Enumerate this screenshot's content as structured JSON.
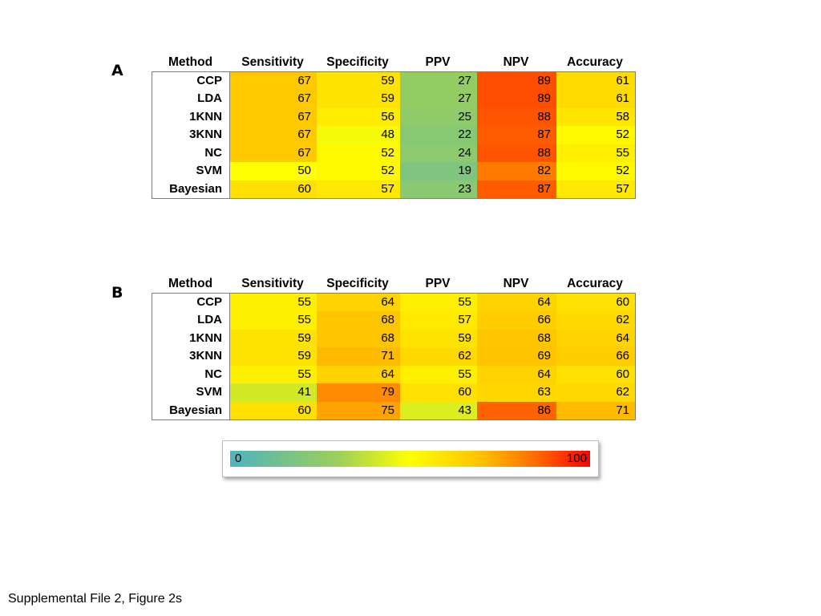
{
  "chart_data": [
    {
      "type": "heatmap",
      "panel": "A",
      "columns": [
        "Method",
        "Sensitivity",
        "Specificity",
        "PPV",
        "NPV",
        "Accuracy"
      ],
      "rows": [
        {
          "method": "CCP",
          "values": [
            67,
            59,
            27,
            89,
            61
          ]
        },
        {
          "method": "LDA",
          "values": [
            67,
            59,
            27,
            89,
            61
          ]
        },
        {
          "method": "1KNN",
          "values": [
            67,
            56,
            25,
            88,
            58
          ]
        },
        {
          "method": "3KNN",
          "values": [
            67,
            48,
            22,
            87,
            52
          ]
        },
        {
          "method": "NC",
          "values": [
            67,
            52,
            24,
            88,
            55
          ]
        },
        {
          "method": "SVM",
          "values": [
            50,
            52,
            19,
            82,
            52
          ]
        },
        {
          "method": "Bayesian",
          "values": [
            60,
            57,
            23,
            87,
            57
          ]
        }
      ]
    },
    {
      "type": "heatmap",
      "panel": "B",
      "columns": [
        "Method",
        "Sensitivity",
        "Specificity",
        "PPV",
        "NPV",
        "Accuracy"
      ],
      "rows": [
        {
          "method": "CCP",
          "values": [
            55,
            64,
            55,
            64,
            60
          ]
        },
        {
          "method": "LDA",
          "values": [
            55,
            68,
            57,
            66,
            62
          ]
        },
        {
          "method": "1KNN",
          "values": [
            59,
            68,
            59,
            68,
            64
          ]
        },
        {
          "method": "3KNN",
          "values": [
            59,
            71,
            62,
            69,
            66
          ]
        },
        {
          "method": "NC",
          "values": [
            55,
            64,
            55,
            64,
            60
          ]
        },
        {
          "method": "SVM",
          "values": [
            41,
            79,
            60,
            63,
            62
          ]
        },
        {
          "method": "Bayesian",
          "values": [
            60,
            75,
            43,
            86,
            71
          ]
        }
      ]
    }
  ],
  "legend": {
    "min_label": "0",
    "max_label": "100",
    "min": 0,
    "max": 100,
    "colors": [
      "#4fb3bf",
      "#9ccf5a",
      "#ffff00",
      "#ffc000",
      "#ff6a00",
      "#ff0000"
    ]
  },
  "caption": "Supplemental File 2, Figure 2s"
}
